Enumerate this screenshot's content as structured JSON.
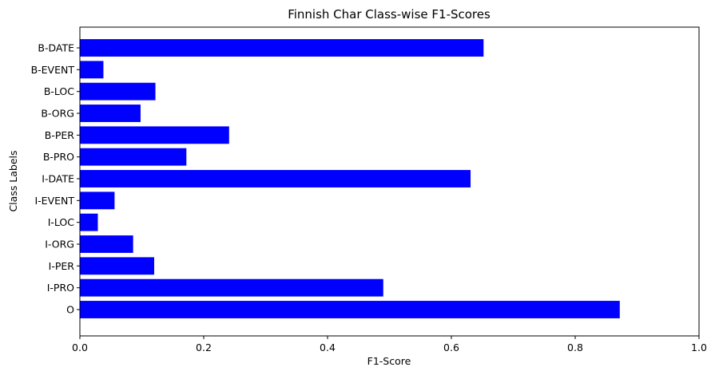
{
  "chart_data": {
    "type": "bar",
    "orientation": "horizontal",
    "title": "Finnish Char Class-wise F1-Scores",
    "xlabel": "F1-Score",
    "ylabel": "Class Labels",
    "xlim": [
      0,
      1.0
    ],
    "xticks": [
      "0.0",
      "0.2",
      "0.4",
      "0.6",
      "0.8",
      "1.0"
    ],
    "categories": [
      "B-DATE",
      "B-EVENT",
      "B-LOC",
      "B-ORG",
      "B-PER",
      "B-PRO",
      "I-DATE",
      "I-EVENT",
      "I-LOC",
      "I-ORG",
      "I-PER",
      "I-PRO",
      "O"
    ],
    "values": [
      0.652,
      0.038,
      0.122,
      0.098,
      0.241,
      0.172,
      0.631,
      0.056,
      0.029,
      0.086,
      0.12,
      0.49,
      0.872
    ],
    "bar_color": "#0000ff",
    "grid": false,
    "legend": "none"
  }
}
